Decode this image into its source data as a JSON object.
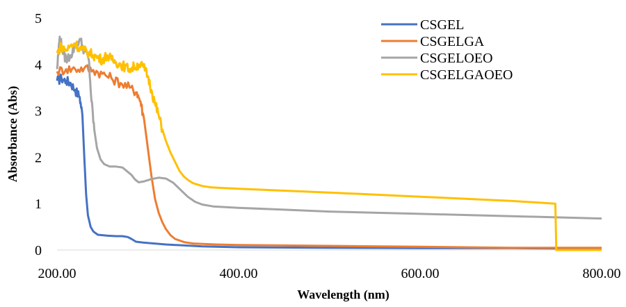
{
  "chart_data": {
    "type": "line",
    "title": "",
    "xlabel": "Wavelength (nm)",
    "ylabel": "Absorbance (Abs)",
    "xlim": [
      200,
      800
    ],
    "ylim": [
      0,
      5
    ],
    "x_ticks": [
      200,
      400,
      600,
      800
    ],
    "x_tick_labels": [
      "200.00",
      "400.00",
      "600.00",
      "800.00"
    ],
    "y_ticks": [
      0,
      1,
      2,
      3,
      4,
      5
    ],
    "y_tick_labels": [
      "0",
      "1",
      "2",
      "3",
      "4",
      "5"
    ],
    "grid": false,
    "legend_position": "top-right",
    "series": [
      {
        "name": "CSGEL",
        "color": "#4472C4",
        "points": [
          [
            200,
            3.65
          ],
          [
            205,
            3.7
          ],
          [
            210,
            3.65
          ],
          [
            215,
            3.6
          ],
          [
            220,
            3.45
          ],
          [
            225,
            3.3
          ],
          [
            228,
            2.9
          ],
          [
            230,
            2.0
          ],
          [
            232,
            1.2
          ],
          [
            234,
            0.75
          ],
          [
            237,
            0.5
          ],
          [
            240,
            0.4
          ],
          [
            245,
            0.33
          ],
          [
            255,
            0.31
          ],
          [
            265,
            0.3
          ],
          [
            272,
            0.3
          ],
          [
            278,
            0.28
          ],
          [
            282,
            0.24
          ],
          [
            287,
            0.18
          ],
          [
            295,
            0.16
          ],
          [
            320,
            0.12
          ],
          [
            360,
            0.08
          ],
          [
            400,
            0.06
          ],
          [
            500,
            0.05
          ],
          [
            600,
            0.04
          ],
          [
            700,
            0.04
          ],
          [
            800,
            0.03
          ]
        ]
      },
      {
        "name": "CSGELGA",
        "color": "#ED7D31",
        "points": [
          [
            200,
            3.85
          ],
          [
            210,
            3.9
          ],
          [
            220,
            3.9
          ],
          [
            230,
            3.92
          ],
          [
            240,
            3.88
          ],
          [
            250,
            3.8
          ],
          [
            260,
            3.7
          ],
          [
            270,
            3.6
          ],
          [
            280,
            3.5
          ],
          [
            288,
            3.4
          ],
          [
            292,
            3.2
          ],
          [
            296,
            2.8
          ],
          [
            300,
            2.2
          ],
          [
            304,
            1.6
          ],
          [
            308,
            1.1
          ],
          [
            312,
            0.8
          ],
          [
            316,
            0.6
          ],
          [
            320,
            0.45
          ],
          [
            325,
            0.32
          ],
          [
            330,
            0.24
          ],
          [
            340,
            0.17
          ],
          [
            350,
            0.14
          ],
          [
            375,
            0.12
          ],
          [
            400,
            0.11
          ],
          [
            500,
            0.09
          ],
          [
            600,
            0.07
          ],
          [
            700,
            0.05
          ],
          [
            800,
            0.05
          ]
        ]
      },
      {
        "name": "CSGELOEO",
        "color": "#A5A5A5",
        "points": [
          [
            200,
            3.9
          ],
          [
            203,
            4.6
          ],
          [
            206,
            4.3
          ],
          [
            210,
            4.1
          ],
          [
            215,
            4.2
          ],
          [
            220,
            4.4
          ],
          [
            225,
            4.55
          ],
          [
            230,
            4.3
          ],
          [
            235,
            4.1
          ],
          [
            238,
            3.2
          ],
          [
            241,
            2.6
          ],
          [
            244,
            2.2
          ],
          [
            248,
            1.95
          ],
          [
            252,
            1.85
          ],
          [
            258,
            1.8
          ],
          [
            265,
            1.8
          ],
          [
            272,
            1.78
          ],
          [
            277,
            1.7
          ],
          [
            282,
            1.62
          ],
          [
            286,
            1.52
          ],
          [
            290,
            1.46
          ],
          [
            296,
            1.48
          ],
          [
            304,
            1.53
          ],
          [
            312,
            1.56
          ],
          [
            320,
            1.54
          ],
          [
            328,
            1.45
          ],
          [
            336,
            1.3
          ],
          [
            344,
            1.15
          ],
          [
            352,
            1.04
          ],
          [
            360,
            0.98
          ],
          [
            372,
            0.94
          ],
          [
            400,
            0.91
          ],
          [
            450,
            0.87
          ],
          [
            500,
            0.83
          ],
          [
            600,
            0.78
          ],
          [
            700,
            0.73
          ],
          [
            800,
            0.68
          ]
        ]
      },
      {
        "name": "CSGELGAOEO",
        "color": "#FFC000",
        "points": [
          [
            200,
            4.25
          ],
          [
            205,
            4.4
          ],
          [
            210,
            4.3
          ],
          [
            215,
            4.4
          ],
          [
            220,
            4.45
          ],
          [
            225,
            4.35
          ],
          [
            230,
            4.3
          ],
          [
            235,
            4.25
          ],
          [
            240,
            4.2
          ],
          [
            245,
            4.15
          ],
          [
            250,
            4.1
          ],
          [
            255,
            4.2
          ],
          [
            260,
            4.1
          ],
          [
            265,
            4.05
          ],
          [
            270,
            4.0
          ],
          [
            275,
            3.95
          ],
          [
            280,
            3.9
          ],
          [
            285,
            3.95
          ],
          [
            290,
            4.0
          ],
          [
            295,
            3.95
          ],
          [
            300,
            3.75
          ],
          [
            304,
            3.45
          ],
          [
            308,
            3.15
          ],
          [
            312,
            2.9
          ],
          [
            316,
            2.6
          ],
          [
            320,
            2.35
          ],
          [
            325,
            2.1
          ],
          [
            330,
            1.9
          ],
          [
            335,
            1.7
          ],
          [
            340,
            1.58
          ],
          [
            345,
            1.5
          ],
          [
            350,
            1.44
          ],
          [
            360,
            1.38
          ],
          [
            370,
            1.35
          ],
          [
            380,
            1.34
          ],
          [
            400,
            1.32
          ],
          [
            500,
            1.24
          ],
          [
            600,
            1.15
          ],
          [
            700,
            1.06
          ],
          [
            749,
            1.0
          ],
          [
            750,
            0.0
          ],
          [
            800,
            0.0
          ]
        ]
      }
    ]
  }
}
